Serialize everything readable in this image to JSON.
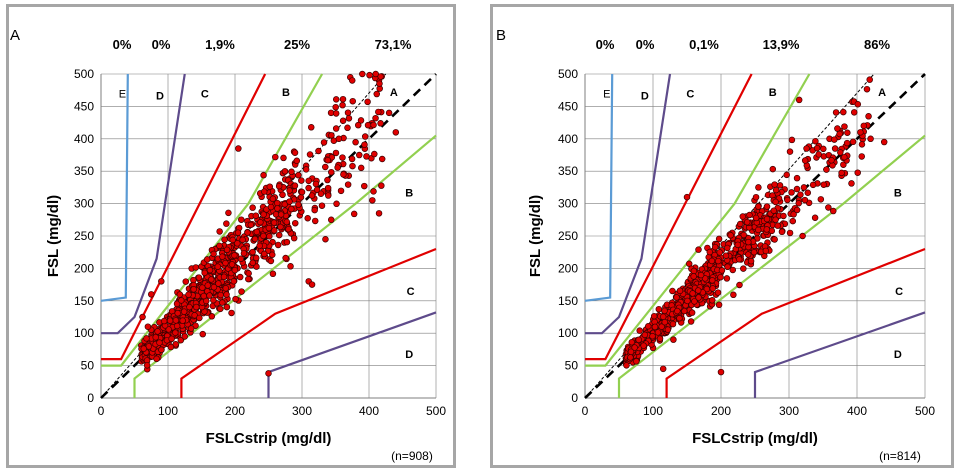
{
  "chart_data": [
    {
      "type": "scatter",
      "panel": "A",
      "xlabel": "FSLCstrip (mg/dl)",
      "ylabel": "FSL (mg/dl)",
      "xlim": [
        0,
        500
      ],
      "ylim": [
        0,
        500
      ],
      "xticks": [
        "0",
        "100",
        "200",
        "300",
        "400",
        "500"
      ],
      "yticks": [
        "0",
        "50",
        "100",
        "150",
        "200",
        "250",
        "300",
        "350",
        "400",
        "450",
        "500"
      ],
      "grid": true,
      "n_label": "(n=908)",
      "zone_percentages": [
        "0%",
        "0%",
        "1,9%",
        "25%",
        "73,1%"
      ],
      "zone_labels": [
        {
          "text": "E",
          "x": 32,
          "y": 470
        },
        {
          "text": "D",
          "x": 88,
          "y": 467
        },
        {
          "text": "C",
          "x": 155,
          "y": 470
        },
        {
          "text": "B",
          "x": 276,
          "y": 472
        },
        {
          "text": "A",
          "x": 437,
          "y": 472
        },
        {
          "text": "B",
          "x": 460,
          "y": 317
        },
        {
          "text": "C",
          "x": 462,
          "y": 165
        },
        {
          "text": "D",
          "x": 460,
          "y": 68
        }
      ],
      "points_seed": 11,
      "points_count": 908,
      "clusters_manual": [
        [
          250,
          38
        ],
        [
          205,
          385
        ],
        [
          335,
          245
        ],
        [
          405,
          305
        ],
        [
          415,
          285
        ],
        [
          355,
          400
        ],
        [
          372,
          495
        ],
        [
          390,
          500
        ],
        [
          410,
          500
        ],
        [
          375,
          490
        ],
        [
          310,
          180
        ],
        [
          315,
          175
        ],
        [
          125,
          95
        ],
        [
          440,
          410
        ],
        [
          430,
          440
        ],
        [
          90,
          180
        ],
        [
          75,
          160
        ],
        [
          62,
          125
        ],
        [
          70,
          110
        ]
      ]
    },
    {
      "type": "scatter",
      "panel": "B",
      "xlabel": "FSLCstrip (mg/dl)",
      "ylabel": "FSL (mg/dl)",
      "xlim": [
        0,
        500
      ],
      "ylim": [
        0,
        500
      ],
      "xticks": [
        "0",
        "100",
        "200",
        "300",
        "400",
        "500"
      ],
      "yticks": [
        "0",
        "50",
        "100",
        "150",
        "200",
        "250",
        "300",
        "350",
        "400",
        "450",
        "500"
      ],
      "grid": true,
      "n_label": "(n=814)",
      "zone_percentages": [
        "0%",
        "0%",
        "0,1%",
        "13,9%",
        "86%"
      ],
      "zone_labels": [
        {
          "text": "E",
          "x": 32,
          "y": 470
        },
        {
          "text": "D",
          "x": 88,
          "y": 467
        },
        {
          "text": "C",
          "x": 155,
          "y": 470
        },
        {
          "text": "B",
          "x": 276,
          "y": 472
        },
        {
          "text": "A",
          "x": 437,
          "y": 472
        },
        {
          "text": "B",
          "x": 460,
          "y": 317
        },
        {
          "text": "C",
          "x": 462,
          "y": 165
        },
        {
          "text": "D",
          "x": 460,
          "y": 68
        }
      ],
      "points_seed": 29,
      "points_count": 814,
      "clusters_manual": [
        [
          315,
          460
        ],
        [
          200,
          40
        ],
        [
          420,
          400
        ],
        [
          440,
          395
        ],
        [
          410,
          420
        ],
        [
          405,
          410
        ],
        [
          150,
          310
        ],
        [
          255,
          325
        ],
        [
          320,
          250
        ],
        [
          130,
          90
        ],
        [
          115,
          45
        ]
      ]
    }
  ],
  "zone_lines": [
    {
      "color": "#5b9bd5",
      "pts": [
        [
          0,
          150
        ],
        [
          37,
          155
        ],
        [
          40,
          500
        ]
      ]
    },
    {
      "color": "#5e4b8b",
      "pts": [
        [
          0,
          100
        ],
        [
          25,
          100
        ],
        [
          50,
          125
        ],
        [
          83,
          215
        ],
        [
          125,
          500
        ]
      ]
    },
    {
      "color": "#5e4b8b",
      "pts": [
        [
          250,
          0
        ],
        [
          250,
          40
        ],
        [
          500,
          132
        ]
      ]
    },
    {
      "color": "#e00000",
      "pts": [
        [
          0,
          60
        ],
        [
          30,
          60
        ],
        [
          245,
          500
        ]
      ]
    },
    {
      "color": "#e00000",
      "pts": [
        [
          120,
          0
        ],
        [
          120,
          30
        ],
        [
          260,
          130
        ],
        [
          500,
          230
        ]
      ]
    },
    {
      "color": "#92d050",
      "pts": [
        [
          0,
          50
        ],
        [
          30,
          50
        ],
        [
          220,
          300
        ],
        [
          330,
          500
        ]
      ]
    },
    {
      "color": "#92d050",
      "pts": [
        [
          50,
          0
        ],
        [
          50,
          30
        ],
        [
          380,
          300
        ],
        [
          500,
          405
        ]
      ]
    }
  ],
  "identity_line": [
    [
      0,
      0
    ],
    [
      500,
      500
    ]
  ],
  "ega_line": [
    [
      0,
      0
    ],
    [
      425,
      500
    ]
  ]
}
